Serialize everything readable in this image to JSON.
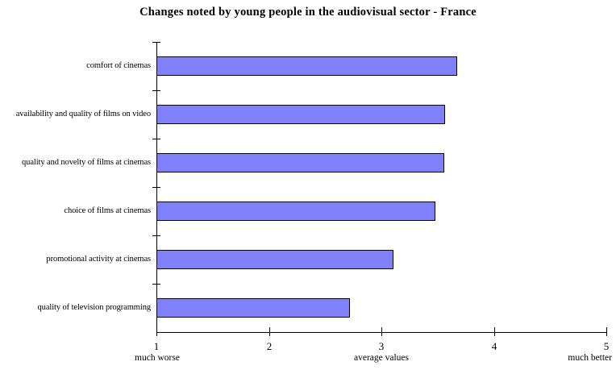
{
  "chart_data": {
    "type": "bar",
    "orientation": "horizontal",
    "title": "Changes noted by young people in the audiovisual sector - France",
    "categories": [
      "comfort of cinemas",
      "availability and quality of films on video",
      "quality and novelty of films at cinemas",
      "choice of films at cinemas",
      "promotional activity at cinemas",
      "quality of television programming"
    ],
    "values": [
      3.67,
      3.56,
      3.55,
      3.47,
      3.1,
      2.71
    ],
    "xlabel": "",
    "ylabel": "",
    "xlim": [
      1,
      5
    ],
    "x_ticks": [
      "1",
      "2",
      "3",
      "4",
      "5"
    ],
    "x_axis_annotations": {
      "left": "much worse",
      "center": "average values",
      "right": "much better"
    },
    "bar_color": "#8080FA",
    "bar_border_color": "#000000",
    "grid": false,
    "legend": false
  }
}
